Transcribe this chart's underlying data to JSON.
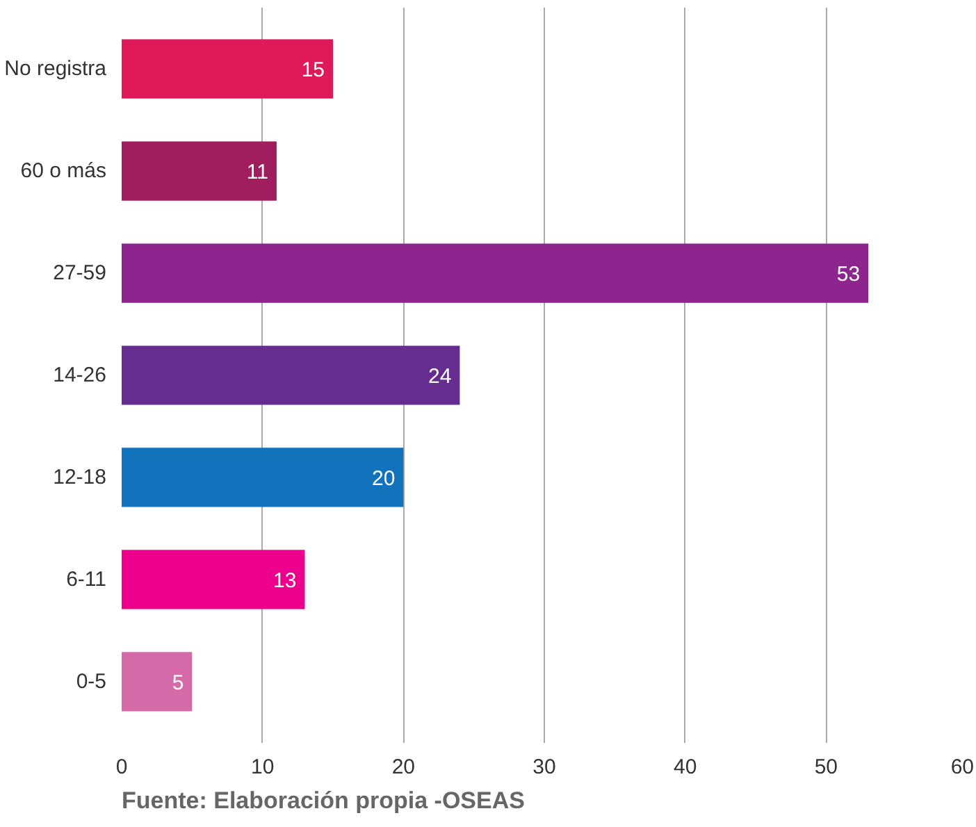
{
  "chart_data": {
    "type": "bar",
    "orientation": "horizontal",
    "categories": [
      "No registra",
      "60 o más",
      "27-59",
      "14-26",
      "12-18",
      "6-11",
      "0-5"
    ],
    "values": [
      15,
      11,
      53,
      24,
      20,
      13,
      5
    ],
    "colors": [
      "#e0195a",
      "#a01e5e",
      "#8e258f",
      "#662d91",
      "#1272bb",
      "#ec008c",
      "#d46ba8"
    ],
    "xlim": [
      0,
      60
    ],
    "xticks": [
      0,
      10,
      20,
      30,
      40,
      50,
      60
    ],
    "grid": "x",
    "data_labels": true,
    "annotations": [
      "Fuente: Elaboración propia -OSEAS"
    ]
  }
}
